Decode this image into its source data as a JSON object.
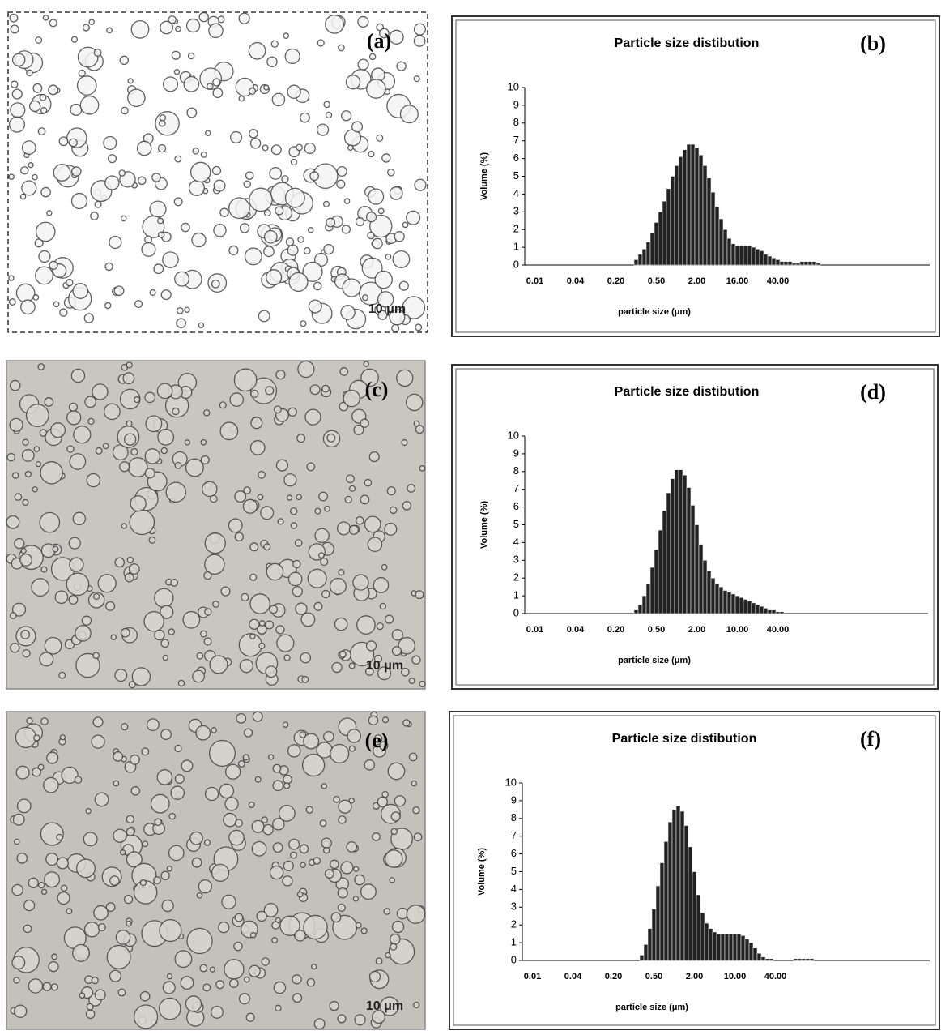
{
  "panels": [
    {
      "label": "(a)",
      "scale": "10 μm"
    },
    {
      "label": "(c)",
      "scale": "10 μm"
    },
    {
      "label": "(e)",
      "scale": "10 μm"
    }
  ],
  "chart_data": [
    {
      "type": "bar",
      "label": "(b)",
      "title": "Particle size distibution",
      "y_label": "Volume (%)",
      "x_label": "particle size (μm)",
      "categories": [
        null,
        null,
        "0.01",
        null,
        null,
        null,
        null,
        null,
        null,
        null,
        null,
        null,
        "0.04",
        null,
        null,
        null,
        null,
        null,
        null,
        null,
        null,
        null,
        "0.20",
        null,
        null,
        null,
        null,
        null,
        null,
        null,
        null,
        null,
        "0.50",
        null,
        null,
        null,
        null,
        null,
        null,
        null,
        null,
        null,
        "2.00",
        null,
        null,
        null,
        null,
        null,
        null,
        null,
        null,
        null,
        "16.00",
        null,
        null,
        null,
        null,
        null,
        null,
        null,
        null,
        null,
        "40.00",
        null,
        null,
        null,
        null,
        null,
        null,
        null,
        null,
        null,
        null
      ],
      "values": [
        0,
        0,
        0,
        0,
        0,
        0,
        0,
        0,
        0,
        0,
        0,
        0,
        0,
        0,
        0,
        0,
        0,
        0,
        0,
        0,
        0,
        0,
        0,
        0,
        0,
        0,
        0,
        0.3,
        0.6,
        0.9,
        1.3,
        1.8,
        2.4,
        3.0,
        3.6,
        4.3,
        5.0,
        5.6,
        6.1,
        6.5,
        6.8,
        6.8,
        6.6,
        6.2,
        5.6,
        4.9,
        4.1,
        3.3,
        2.6,
        2.0,
        1.5,
        1.2,
        1.1,
        1.1,
        1.1,
        1.1,
        1.0,
        0.9,
        0.8,
        0.6,
        0.5,
        0.4,
        0.3,
        0.2,
        0.2,
        0.2,
        0.1,
        0.1,
        0.2,
        0.2,
        0.2,
        0.2,
        0.1
      ],
      "color": "#222222",
      "ylim": [
        0,
        10
      ],
      "yticks": [
        0,
        1,
        2,
        3,
        4,
        5,
        6,
        7,
        8,
        9,
        10
      ]
    },
    {
      "type": "bar",
      "label": "(d)",
      "title": "Particle size distibution",
      "y_label": "Volume (%)",
      "x_label": "particle size (μm)",
      "categories": [
        null,
        null,
        "0.01",
        null,
        null,
        null,
        null,
        null,
        null,
        null,
        null,
        null,
        "0.04",
        null,
        null,
        null,
        null,
        null,
        null,
        null,
        null,
        null,
        "0.20",
        null,
        null,
        null,
        null,
        null,
        null,
        null,
        null,
        null,
        "0.50",
        null,
        null,
        null,
        null,
        null,
        null,
        null,
        null,
        null,
        "2.00",
        null,
        null,
        null,
        null,
        null,
        null,
        null,
        null,
        null,
        "10.00",
        null,
        null,
        null,
        null,
        null,
        null,
        null,
        null,
        null,
        "40.00",
        null
      ],
      "values": [
        0,
        0,
        0,
        0,
        0,
        0,
        0,
        0,
        0,
        0,
        0,
        0,
        0,
        0,
        0,
        0,
        0,
        0,
        0,
        0,
        0,
        0,
        0,
        0,
        0,
        0,
        0,
        0.2,
        0.5,
        1.0,
        1.7,
        2.6,
        3.6,
        4.7,
        5.8,
        6.8,
        7.6,
        8.1,
        8.1,
        7.8,
        7.1,
        6.1,
        5.0,
        3.9,
        3.0,
        2.4,
        2.0,
        1.7,
        1.5,
        1.3,
        1.2,
        1.1,
        1.0,
        0.9,
        0.8,
        0.7,
        0.6,
        0.5,
        0.4,
        0.3,
        0.2,
        0.2,
        0.1,
        0.1
      ],
      "color": "#222222",
      "ylim": [
        0,
        10
      ],
      "yticks": [
        0,
        1,
        2,
        3,
        4,
        5,
        6,
        7,
        8,
        9,
        10
      ]
    },
    {
      "type": "bar",
      "label": "(f)",
      "title": "Particle size distibution",
      "y_label": "Volume (%)",
      "x_label": "particle size (μm)",
      "categories": [
        null,
        null,
        "0.01",
        null,
        null,
        null,
        null,
        null,
        null,
        null,
        null,
        null,
        "0.04",
        null,
        null,
        null,
        null,
        null,
        null,
        null,
        null,
        null,
        "0.20",
        null,
        null,
        null,
        null,
        null,
        null,
        null,
        null,
        null,
        "0.50",
        null,
        null,
        null,
        null,
        null,
        null,
        null,
        null,
        null,
        "2.00",
        null,
        null,
        null,
        null,
        null,
        null,
        null,
        null,
        null,
        "10.00",
        null,
        null,
        null,
        null,
        null,
        null,
        null,
        null,
        null,
        "40.00",
        null,
        null,
        null,
        null,
        null,
        null,
        null,
        null,
        null
      ],
      "values": [
        0,
        0,
        0,
        0,
        0,
        0,
        0,
        0,
        0,
        0,
        0,
        0,
        0,
        0,
        0,
        0,
        0,
        0,
        0,
        0,
        0,
        0,
        0,
        0,
        0,
        0,
        0,
        0,
        0,
        0.3,
        0.9,
        1.8,
        2.9,
        4.2,
        5.5,
        6.7,
        7.8,
        8.5,
        8.7,
        8.4,
        7.6,
        6.4,
        5.0,
        3.7,
        2.7,
        2.1,
        1.8,
        1.6,
        1.5,
        1.5,
        1.5,
        1.5,
        1.5,
        1.5,
        1.4,
        1.2,
        1.0,
        0.7,
        0.4,
        0.2,
        0.1,
        0.1,
        0,
        0,
        0,
        0,
        0,
        0.1,
        0.1,
        0.1,
        0.1,
        0.1
      ],
      "color": "#222222",
      "ylim": [
        0,
        10
      ],
      "yticks": [
        0,
        1,
        2,
        3,
        4,
        5,
        6,
        7,
        8,
        9,
        10
      ]
    }
  ]
}
